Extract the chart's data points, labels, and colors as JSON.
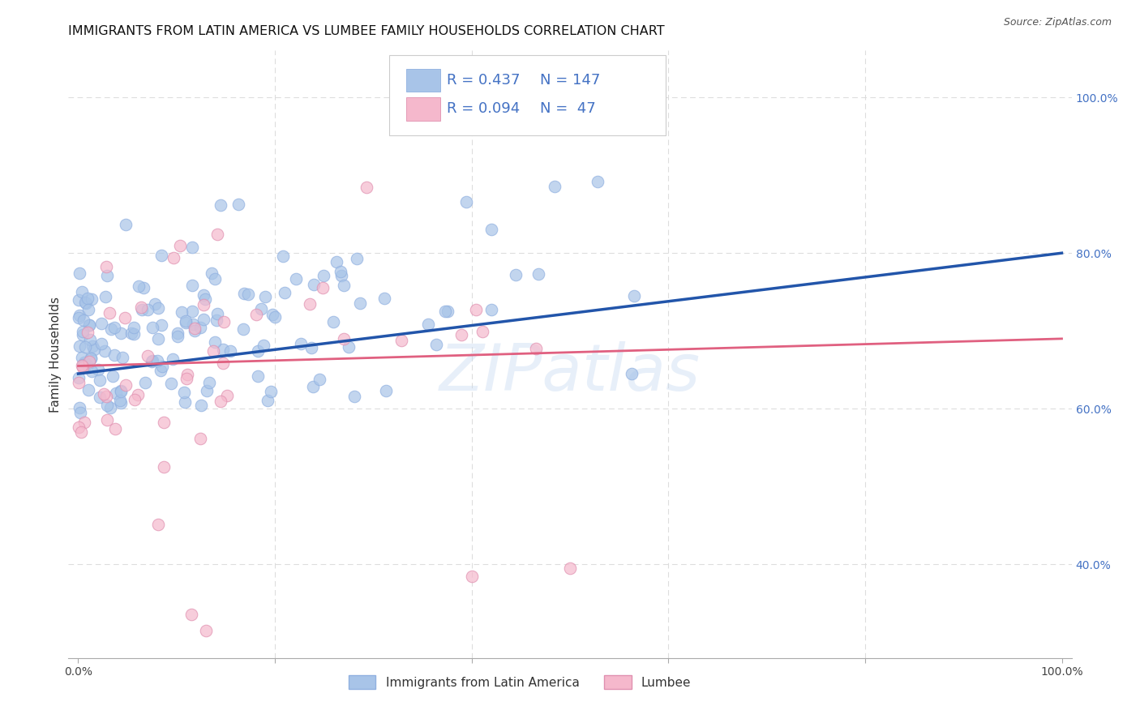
{
  "title": "IMMIGRANTS FROM LATIN AMERICA VS LUMBEE FAMILY HOUSEHOLDS CORRELATION CHART",
  "source": "Source: ZipAtlas.com",
  "ylabel": "Family Households",
  "r_blue": 0.437,
  "n_blue": 147,
  "r_pink": 0.094,
  "n_pink": 47,
  "blue_scatter_color": "#a8c4e8",
  "pink_scatter_color": "#f5b8cc",
  "blue_line_color": "#2255aa",
  "pink_line_color": "#e06080",
  "right_tick_color": "#4472c4",
  "legend_text_color": "#4472c4",
  "background_color": "#ffffff",
  "grid_color": "#dddddd",
  "title_fontsize": 11.5,
  "watermark_text": "ZIPatlas",
  "xlim": [
    -0.01,
    1.01
  ],
  "ylim": [
    0.28,
    1.06
  ],
  "blue_line_y0": 0.645,
  "blue_line_y1": 0.8,
  "pink_line_y0": 0.655,
  "pink_line_y1": 0.69,
  "seed_blue": 42,
  "seed_pink": 7
}
